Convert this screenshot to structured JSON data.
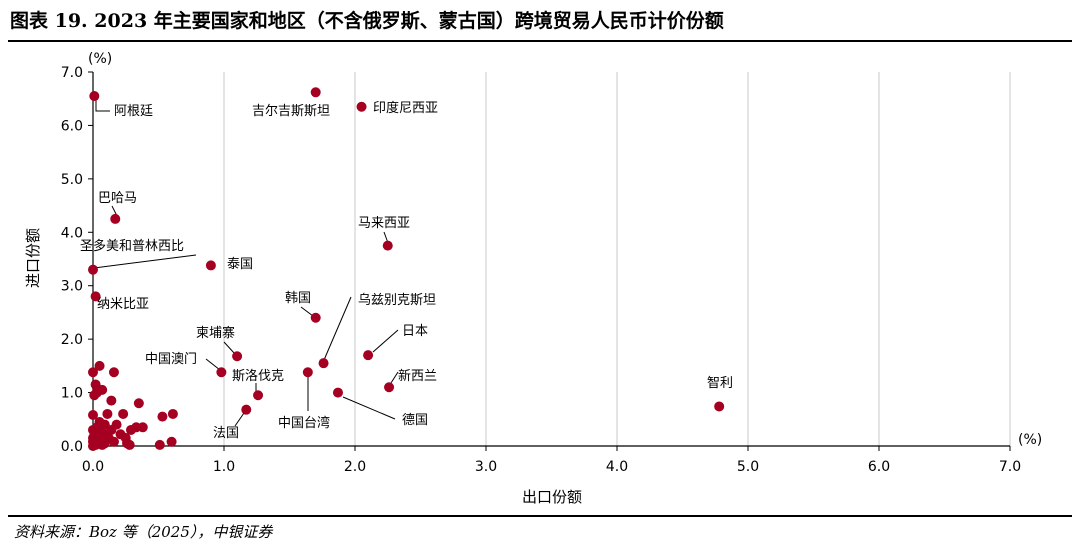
{
  "header": {
    "title": "图表 19. 2023 年主要国家和地区（不含俄罗斯、蒙古国）跨境贸易人民币计价份额"
  },
  "footer": {
    "source": "资料来源：Boz 等（2025），中银证券"
  },
  "colors": {
    "marker": "#a50021",
    "grid": "#c8c8c8",
    "axis": "#000000"
  },
  "chart_data": {
    "type": "scatter",
    "xlabel": "出口份额",
    "ylabel": "进口份额",
    "x_unit": "(%)",
    "y_unit": "(%)",
    "xlim": [
      0,
      7
    ],
    "ylim": [
      0,
      7
    ],
    "x_ticks": [
      "0.0",
      "1.0",
      "2.0",
      "3.0",
      "4.0",
      "5.0",
      "6.0",
      "7.0"
    ],
    "y_ticks": [
      "0.0",
      "1.0",
      "2.0",
      "3.0",
      "4.0",
      "5.0",
      "6.0",
      "7.0"
    ],
    "grid": "vertical",
    "labeled_points": [
      {
        "label": "阿根廷",
        "x": 0.01,
        "y": 6.55
      },
      {
        "label": "吉尔吉斯斯坦",
        "x": 1.7,
        "y": 6.62
      },
      {
        "label": "印度尼西亚",
        "x": 2.05,
        "y": 6.35
      },
      {
        "label": "巴哈马",
        "x": 0.17,
        "y": 4.25
      },
      {
        "label": "马来西亚",
        "x": 2.25,
        "y": 3.75
      },
      {
        "label": "圣多美和普林西比",
        "x": 0.0,
        "y": 3.3
      },
      {
        "label": "泰国",
        "x": 0.9,
        "y": 3.38
      },
      {
        "label": "纳米比亚",
        "x": 0.02,
        "y": 2.8
      },
      {
        "label": "韩国",
        "x": 1.7,
        "y": 2.4
      },
      {
        "label": "乌兹别克斯坦",
        "x": 1.76,
        "y": 1.55
      },
      {
        "label": "日本",
        "x": 2.1,
        "y": 1.7
      },
      {
        "label": "柬埔寨",
        "x": 1.1,
        "y": 1.68
      },
      {
        "label": "中国澳门",
        "x": 0.98,
        "y": 1.38
      },
      {
        "label": "斯洛伐克",
        "x": 1.26,
        "y": 0.95
      },
      {
        "label": "新西兰",
        "x": 2.26,
        "y": 1.1
      },
      {
        "label": "中国台湾",
        "x": 1.64,
        "y": 1.38
      },
      {
        "label": "德国",
        "x": 1.87,
        "y": 1.0
      },
      {
        "label": "法国",
        "x": 1.17,
        "y": 0.68
      },
      {
        "label": "智利",
        "x": 4.78,
        "y": 0.74
      }
    ],
    "points": [
      [
        0.0,
        1.38
      ],
      [
        0.02,
        1.15
      ],
      [
        0.05,
        1.5
      ],
      [
        0.16,
        1.38
      ],
      [
        0.07,
        1.05
      ],
      [
        0.01,
        0.95
      ],
      [
        0.03,
        1.0
      ],
      [
        0.14,
        0.85
      ],
      [
        0.35,
        0.8
      ],
      [
        0.0,
        0.58
      ],
      [
        0.11,
        0.6
      ],
      [
        0.23,
        0.6
      ],
      [
        0.53,
        0.55
      ],
      [
        0.61,
        0.6
      ],
      [
        0.05,
        0.45
      ],
      [
        0.09,
        0.4
      ],
      [
        0.18,
        0.4
      ],
      [
        0.03,
        0.35
      ],
      [
        0.0,
        0.3
      ],
      [
        0.14,
        0.3
      ],
      [
        0.33,
        0.35
      ],
      [
        0.38,
        0.35
      ],
      [
        0.29,
        0.3
      ],
      [
        0.06,
        0.25
      ],
      [
        0.1,
        0.22
      ],
      [
        0.21,
        0.22
      ],
      [
        0.0,
        0.15
      ],
      [
        0.04,
        0.15
      ],
      [
        0.12,
        0.15
      ],
      [
        0.25,
        0.15
      ],
      [
        0.0,
        0.08
      ],
      [
        0.02,
        0.05
      ],
      [
        0.06,
        0.1
      ],
      [
        0.09,
        0.05
      ],
      [
        0.16,
        0.08
      ],
      [
        0.26,
        0.05
      ],
      [
        0.28,
        0.02
      ],
      [
        0.51,
        0.02
      ],
      [
        0.6,
        0.08
      ],
      [
        0.0,
        0.0
      ],
      [
        0.02,
        0.02
      ],
      [
        0.01,
        0.2
      ],
      [
        0.07,
        0.02
      ],
      [
        0.04,
        0.28
      ]
    ]
  }
}
